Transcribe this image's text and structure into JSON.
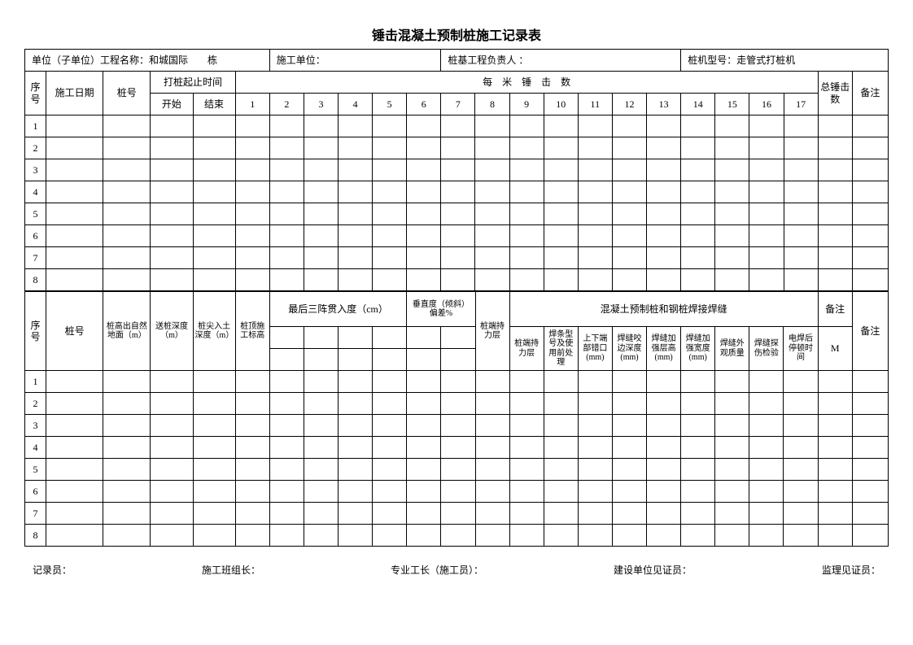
{
  "title": "锤击混凝土预制桩施工记录表",
  "info": {
    "unit_label": "单位（子单位）工程名称：和城国际",
    "building_suffix": "栋",
    "construct_unit": "施工单位：",
    "pile_manager": "桩基工程负责人 ：",
    "machine": "桩机型号：走管式打桩机"
  },
  "t1h": {
    "seq": "序号",
    "date": "施工日期",
    "pile_no": "桩号",
    "time_group": "打桩起止时间",
    "start": "开始",
    "end": "结束",
    "per_meter": "每　米　锤　击　数",
    "nums": [
      "1",
      "2",
      "3",
      "4",
      "5",
      "6",
      "7",
      "8",
      "9",
      "10",
      "11",
      "12",
      "13",
      "14",
      "15",
      "16",
      "17"
    ],
    "total": "总锤击数",
    "remark": "备注"
  },
  "rows1": [
    "1",
    "2",
    "3",
    "4",
    "5",
    "6",
    "7",
    "8"
  ],
  "t2h": {
    "seq": "序号",
    "pile_no": "桩号",
    "height": "桩高出自然地面（m）",
    "send_depth": "送桩深度（m）",
    "tip_depth": "桩尖入土深度（m）",
    "top_elev": "桩顶施工标高",
    "last3": "最后三阵贯入度（cm）",
    "vert": "垂直度（倾斜）偏差%",
    "bearing": "桩端持力层",
    "weld_group": "混凝土预制桩和钢桩焊接焊缝",
    "w1": "桩端持力层",
    "w2": "焊条型号及使用前处理",
    "w3": "上下端部错口(mm)",
    "w4": "焊缝咬边深度(mm)",
    "w5": "焊缝加强层高(mm)",
    "w6": "焊缝加强宽度(mm)",
    "w7": "焊缝外观质量",
    "w8": "焊缝探伤检验",
    "w9": "电焊后停顿时间",
    "remark": "备注",
    "m": "M"
  },
  "rows2": [
    "1",
    "2",
    "3",
    "4",
    "5",
    "6",
    "7",
    "8"
  ],
  "sig": {
    "recorder": "记录员：",
    "team": "施工班组长：",
    "foreman": "专业工长（施工员）：",
    "owner_wit": "建设单位见证员：",
    "sup_wit": "监理见证员："
  },
  "style": {
    "border_color": "#000000",
    "bg": "#ffffff",
    "font_body": 12,
    "font_small": 10,
    "font_title": 16
  }
}
